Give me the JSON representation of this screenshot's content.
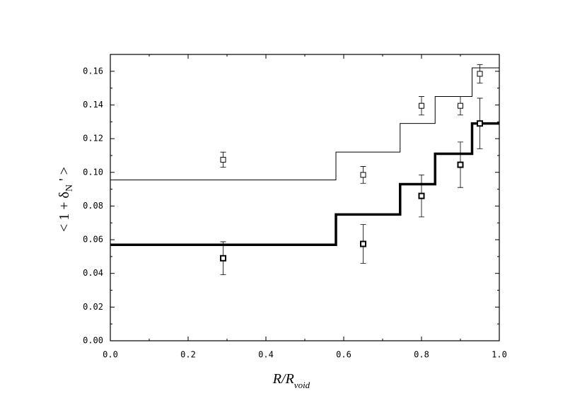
{
  "chart_data": {
    "type": "line",
    "xlabel": [
      "R/R",
      "void"
    ],
    "ylabel": [
      "< 1 + δ",
      "N",
      " ' >"
    ],
    "xlim": [
      0,
      1.0
    ],
    "ylim": [
      0,
      0.17
    ],
    "xticks": [
      {
        "value": 0,
        "label": "0.0"
      },
      0.2,
      0.4,
      0.6,
      0.8,
      {
        "value": 1.0,
        "label": "1.0"
      }
    ],
    "yticks": [
      {
        "value": 0,
        "label": "0.00"
      },
      {
        "value": 0.02,
        "label": "0.02"
      },
      {
        "value": 0.04,
        "label": "0.04"
      },
      {
        "value": 0.06,
        "label": "0.06"
      },
      {
        "value": 0.08,
        "label": "0.08"
      },
      {
        "value": 0.1,
        "label": "0.10"
      },
      {
        "value": 0.12,
        "label": "0.12"
      },
      {
        "value": 0.14,
        "label": "0.14"
      },
      {
        "value": 0.16,
        "label": "0.16"
      }
    ],
    "series": [
      {
        "type": "step",
        "color": "#000000",
        "width": 1,
        "x": [
          0,
          0.58,
          0.745,
          0.835,
          0.93,
          1.0
        ],
        "values": [
          0.0955,
          0.112,
          0.129,
          0.145,
          0.162,
          0.162
        ]
      },
      {
        "type": "step",
        "color": "#000000",
        "width": 3.5,
        "x": [
          0,
          0.58,
          0.745,
          0.835,
          0.93,
          1.0
        ],
        "values": [
          0.057,
          0.075,
          0.093,
          0.111,
          0.129,
          0.129
        ]
      },
      {
        "type": "scatter",
        "color": "#000000",
        "width": 1,
        "x": [
          0.29,
          0.65,
          0.8,
          0.9,
          0.95
        ],
        "values": [
          0.1075,
          0.0985,
          0.1395,
          0.1395,
          0.1585
        ],
        "errors": [
          0.0045,
          0.005,
          0.0055,
          0.0055,
          0.0055
        ]
      },
      {
        "type": "scatter",
        "color": "#000000",
        "width": 2,
        "x": [
          0.29,
          0.65,
          0.8,
          0.9,
          0.95
        ],
        "values": [
          0.049,
          0.0575,
          0.086,
          0.1045,
          0.129
        ],
        "errors": [
          0.0098,
          0.0115,
          0.0125,
          0.0135,
          0.015
        ]
      }
    ]
  }
}
